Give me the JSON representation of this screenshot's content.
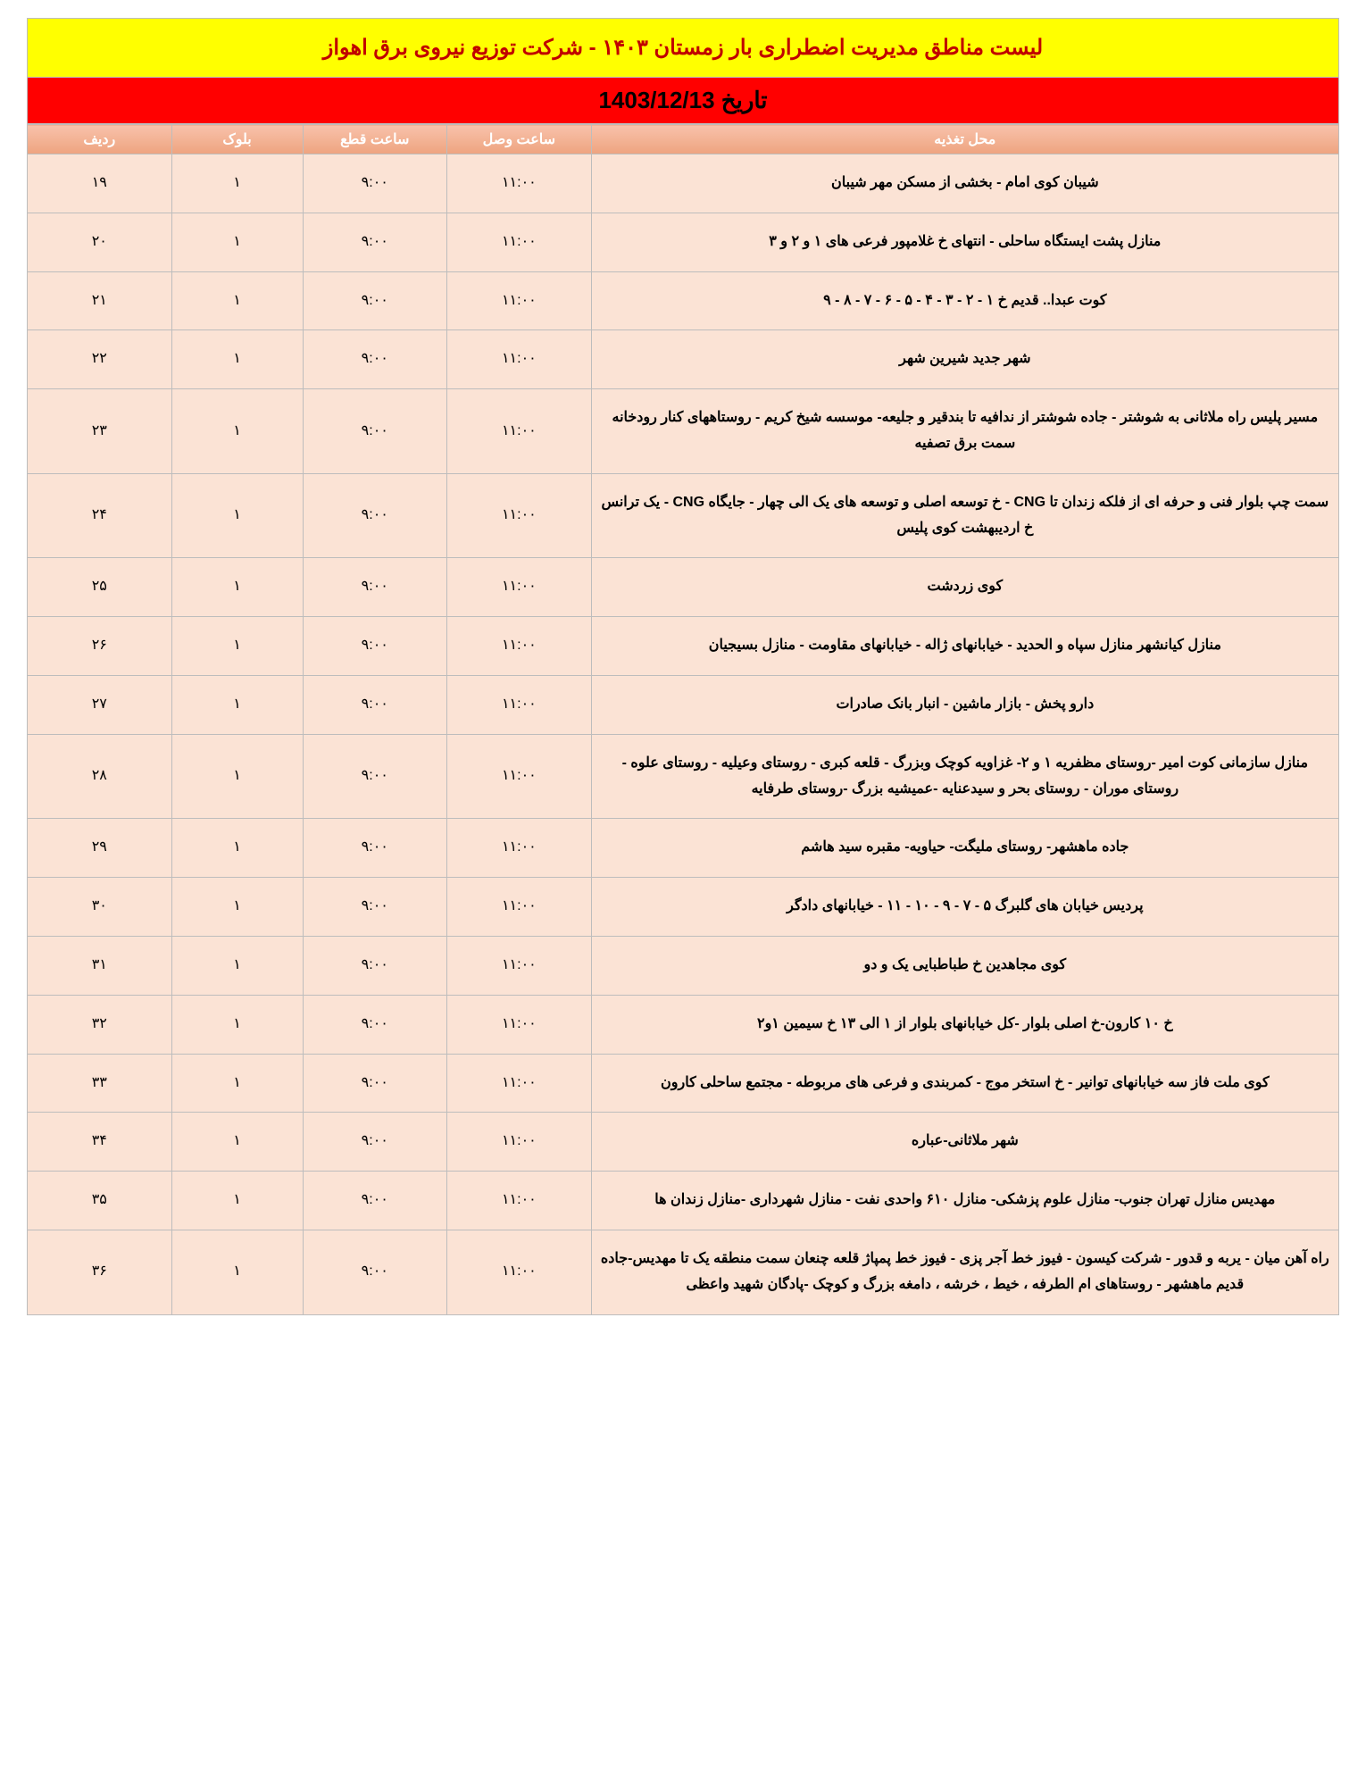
{
  "colors": {
    "title_bg": "#ffff00",
    "title_text": "#c00000",
    "date_bg": "#ff0000",
    "date_text": "#000000",
    "header_bg_top": "#f8c2ab",
    "header_bg_bottom": "#eea37f",
    "header_text": "#ffffff",
    "row_bg": "#fbe3d5",
    "border": "#bdbdbd"
  },
  "title": "لیست مناطق مدیریت اضطراری بار زمستان ۱۴۰۳ - شرکت توزیع نیروی برق اهواز",
  "date_label": "تاریخ 1403/12/13",
  "columns": {
    "location": "محل تغذیه",
    "on_time": "ساعت وصل",
    "off_time": "ساعت قطع",
    "block": "بلوک",
    "row": "ردیف"
  },
  "rows": [
    {
      "row": "۱۹",
      "block": "۱",
      "off": "۹:۰۰",
      "on": "۱۱:۰۰",
      "location": "شیبان کوی امام - بخشی از مسکن مهر شیبان"
    },
    {
      "row": "۲۰",
      "block": "۱",
      "off": "۹:۰۰",
      "on": "۱۱:۰۰",
      "location": "منازل پشت ایستگاه ساحلی - انتهای خ غلامپور فرعی های ۱ و ۲ و ۳"
    },
    {
      "row": "۲۱",
      "block": "۱",
      "off": "۹:۰۰",
      "on": "۱۱:۰۰",
      "location": "کوت عبدا.. قدیم خ ۱ - ۲ - ۳ - ۴ - ۵ - ۶ - ۷ - ۸ - ۹"
    },
    {
      "row": "۲۲",
      "block": "۱",
      "off": "۹:۰۰",
      "on": "۱۱:۰۰",
      "location": "شهر جدید شیرین شهر"
    },
    {
      "row": "۲۳",
      "block": "۱",
      "off": "۹:۰۰",
      "on": "۱۱:۰۰",
      "location": "مسیر پلیس راه ملاثانی به شوشتر - جاده شوشتر از ندافیه تا بندقیر و جلیعه- موسسه شیخ کریم - روستاههای کنار رودخانه سمت برق تصفیه"
    },
    {
      "row": "۲۴",
      "block": "۱",
      "off": "۹:۰۰",
      "on": "۱۱:۰۰",
      "location": "سمت چپ بلوار فنی و حرفه ای از فلکه زندان تا CNG - خ توسعه اصلی و توسعه های یک الی چهار - جایگاه CNG - یک ترانس خ اردیبهشت کوی پلیس"
    },
    {
      "row": "۲۵",
      "block": "۱",
      "off": "۹:۰۰",
      "on": "۱۱:۰۰",
      "location": "کوی زردشت"
    },
    {
      "row": "۲۶",
      "block": "۱",
      "off": "۹:۰۰",
      "on": "۱۱:۰۰",
      "location": "منازل کیانشهر منازل سپاه و الحدید - خیابانهای ژاله - خیابانهای مقاومت - منازل بسیجیان"
    },
    {
      "row": "۲۷",
      "block": "۱",
      "off": "۹:۰۰",
      "on": "۱۱:۰۰",
      "location": "دارو پخش - بازار ماشین - انبار بانک صادرات"
    },
    {
      "row": "۲۸",
      "block": "۱",
      "off": "۹:۰۰",
      "on": "۱۱:۰۰",
      "location": "منازل سازمانی کوت امیر -روستای مظفریه ۱ و ۲- غزاویه کوچک وبزرگ - قلعه کبری - روستای وعیلیه - روستای علوه - روستای موران - روستای بحر و سیدعنایه -عمیشیه بزرگ -روستای طرفایه"
    },
    {
      "row": "۲۹",
      "block": "۱",
      "off": "۹:۰۰",
      "on": "۱۱:۰۰",
      "location": "جاده ماهشهر- روستای ملیگت- حیاویه- مقبره سید هاشم"
    },
    {
      "row": "۳۰",
      "block": "۱",
      "off": "۹:۰۰",
      "on": "۱۱:۰۰",
      "location": "پردیس خیابان های گلبرگ ۵ - ۷ - ۹ - ۱۰ - ۱۱ - خیابانهای دادگر"
    },
    {
      "row": "۳۱",
      "block": "۱",
      "off": "۹:۰۰",
      "on": "۱۱:۰۰",
      "location": "کوی مجاهدین خ طباطبایی یک و دو"
    },
    {
      "row": "۳۲",
      "block": "۱",
      "off": "۹:۰۰",
      "on": "۱۱:۰۰",
      "location": "خ ۱۰ کارون-خ اصلی بلوار -کل خیابانهای بلوار از ۱ الی ۱۳ خ سیمین ۱و۲"
    },
    {
      "row": "۳۳",
      "block": "۱",
      "off": "۹:۰۰",
      "on": "۱۱:۰۰",
      "location": "کوی ملت فاز سه خیابانهای توانیر - خ استخر موج - کمربندی و فرعی های مربوطه - مجتمع ساحلی کارون"
    },
    {
      "row": "۳۴",
      "block": "۱",
      "off": "۹:۰۰",
      "on": "۱۱:۰۰",
      "location": "شهر ملاثانی-عباره"
    },
    {
      "row": "۳۵",
      "block": "۱",
      "off": "۹:۰۰",
      "on": "۱۱:۰۰",
      "location": "مهدیس منازل تهران جنوب- منازل علوم پزشکی- منازل ۶۱۰ واحدی نفت - منازل شهرداری -منازل زندان ها"
    },
    {
      "row": "۳۶",
      "block": "۱",
      "off": "۹:۰۰",
      "on": "۱۱:۰۰",
      "location": "راه آهن میان - یربه و قدور - شرکت کیسون - فیوز خط آجر پزی - فیوز خط پمپاژ قلعه چنعان سمت منطقه یک تا مهدیس-جاده قدیم ماهشهر - روستاهای ام الطرفه ، خیط ، خرشه ، دامغه بزرگ و کوچک -پادگان شهید واعظی"
    }
  ]
}
